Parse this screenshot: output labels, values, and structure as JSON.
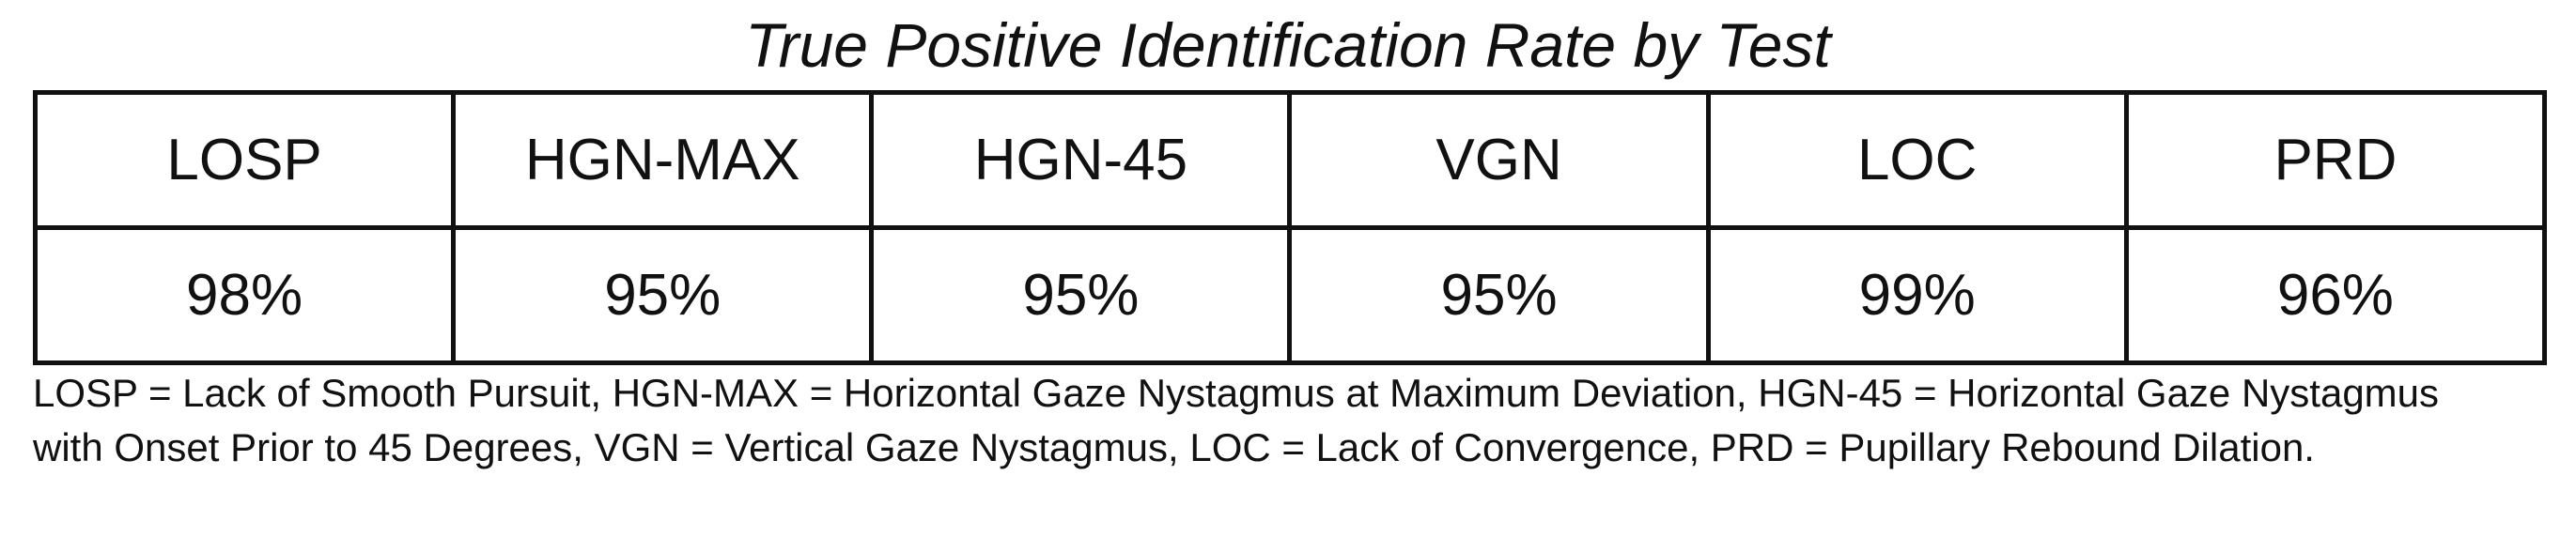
{
  "title": "True Positive Identification Rate by Test",
  "table": {
    "headers": [
      "LOSP",
      "HGN-MAX",
      "HGN-45",
      "VGN",
      "LOC",
      "PRD"
    ],
    "rows": [
      [
        "98%",
        "95%",
        "95%",
        "95%",
        "99%",
        "96%"
      ]
    ]
  },
  "footnote": "LOSP = Lack of Smooth Pursuit, HGN-MAX = Horizontal Gaze Nystagmus at Maximum Deviation, HGN-45 = Horizontal Gaze Nystagmus with Onset Prior to 45 Degrees, VGN = Vertical Gaze Nystagmus, LOC = Lack of Convergence, PRD = Pupillary Rebound Dilation."
}
